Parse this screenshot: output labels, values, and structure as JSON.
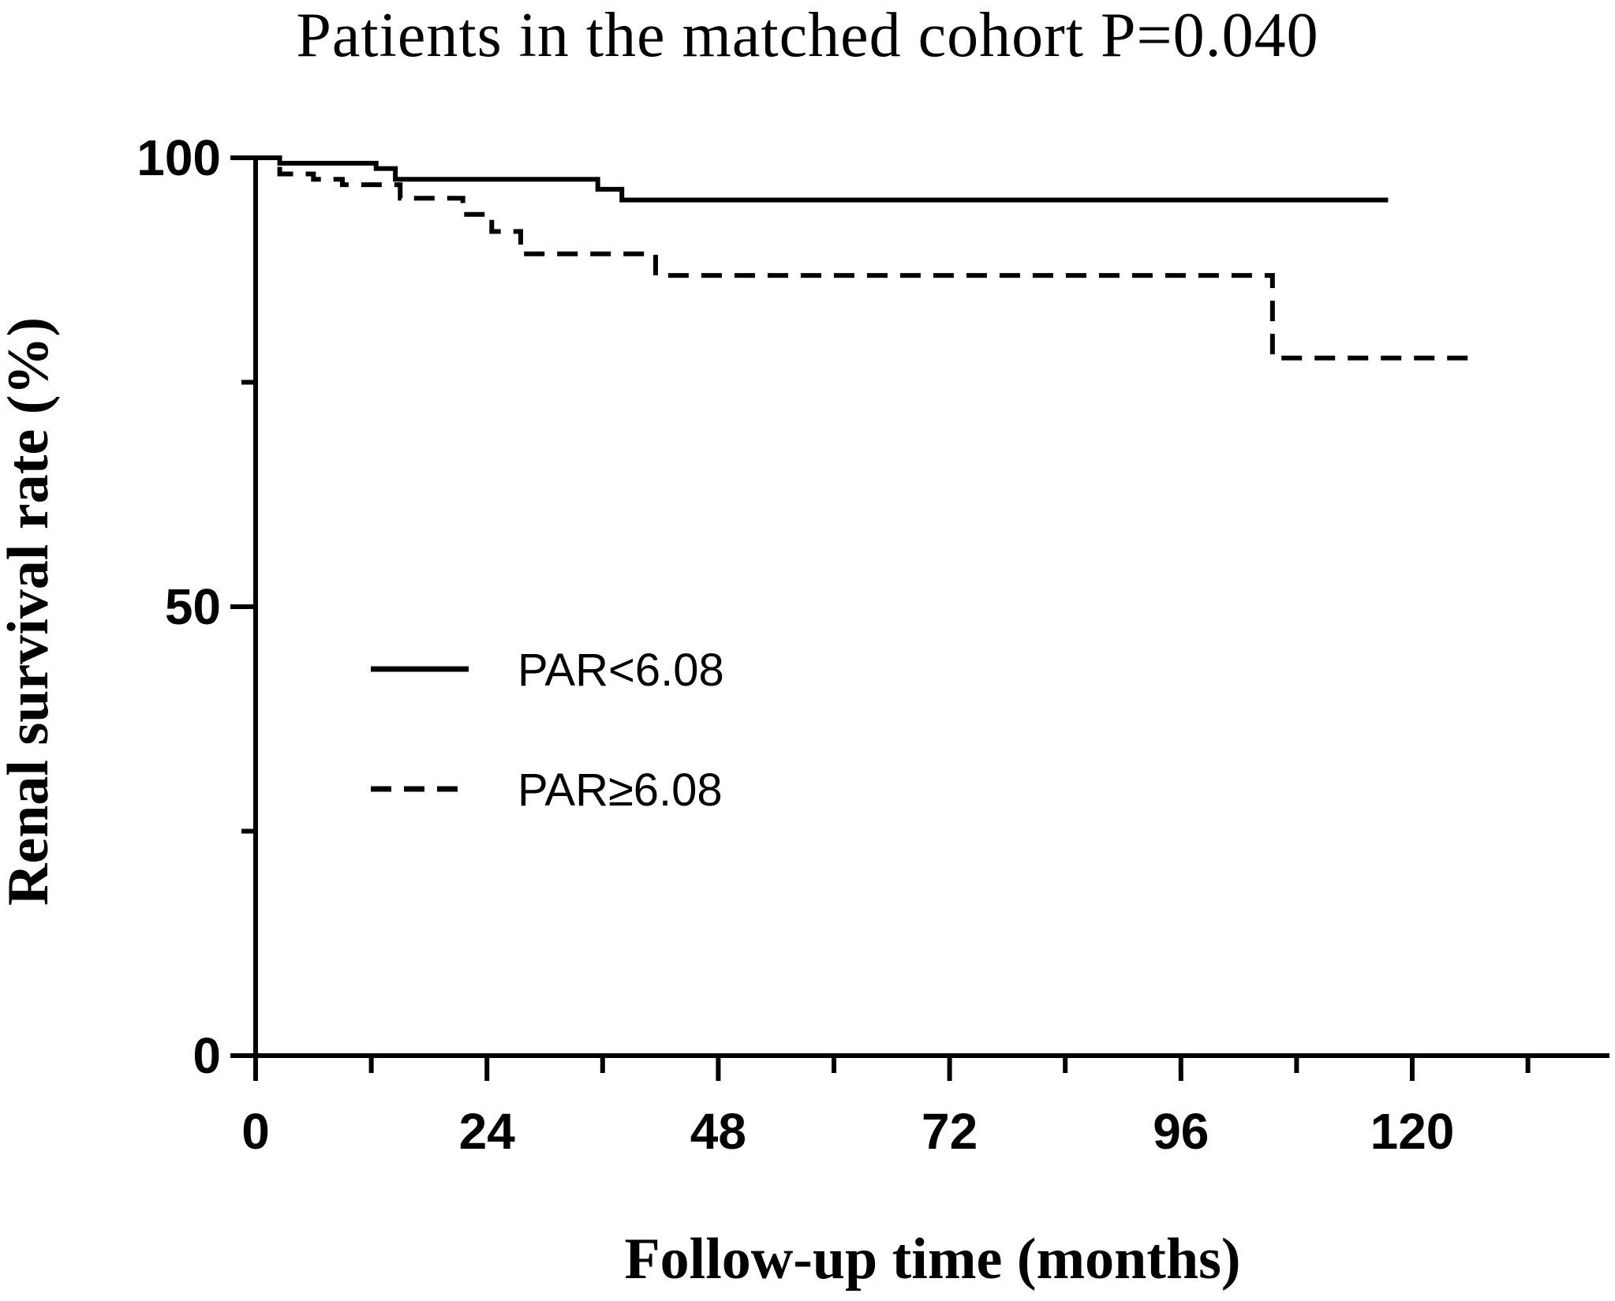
{
  "chart_data": {
    "type": "line",
    "title": "Patients in the matched cohort P=0.040",
    "xlabel": "Follow-up time (months)",
    "ylabel": "Renal survival rate (%)",
    "xlim": [
      0,
      140
    ],
    "ylim": [
      0,
      100
    ],
    "x_ticks": [
      0,
      24,
      48,
      72,
      96,
      120
    ],
    "x_minor_ticks": [
      12,
      36,
      60,
      84,
      108,
      132
    ],
    "y_ticks": [
      0,
      50,
      100
    ],
    "y_minor_ticks": [
      25,
      75
    ],
    "grid": false,
    "legend_placement": "center-left",
    "series": [
      {
        "name": "PAR<6.08",
        "style": "solid",
        "color": "#000000",
        "x": [
          0,
          2.5,
          12.5,
          14.5,
          35.5,
          38,
          117.5
        ],
        "y": [
          100,
          99.4,
          98.8,
          97.6,
          96.5,
          95.3,
          95.3
        ]
      },
      {
        "name": "PAR≥6.08",
        "style": "dashed",
        "color": "#000000",
        "x": [
          0,
          2.5,
          6,
          9,
          15,
          21.5,
          24.5,
          27.5,
          41.5,
          105.5,
          126.5
        ],
        "y": [
          100,
          98.2,
          97.6,
          97.0,
          95.5,
          93.7,
          91.8,
          89.3,
          86.9,
          77.7,
          77.7
        ]
      }
    ]
  }
}
